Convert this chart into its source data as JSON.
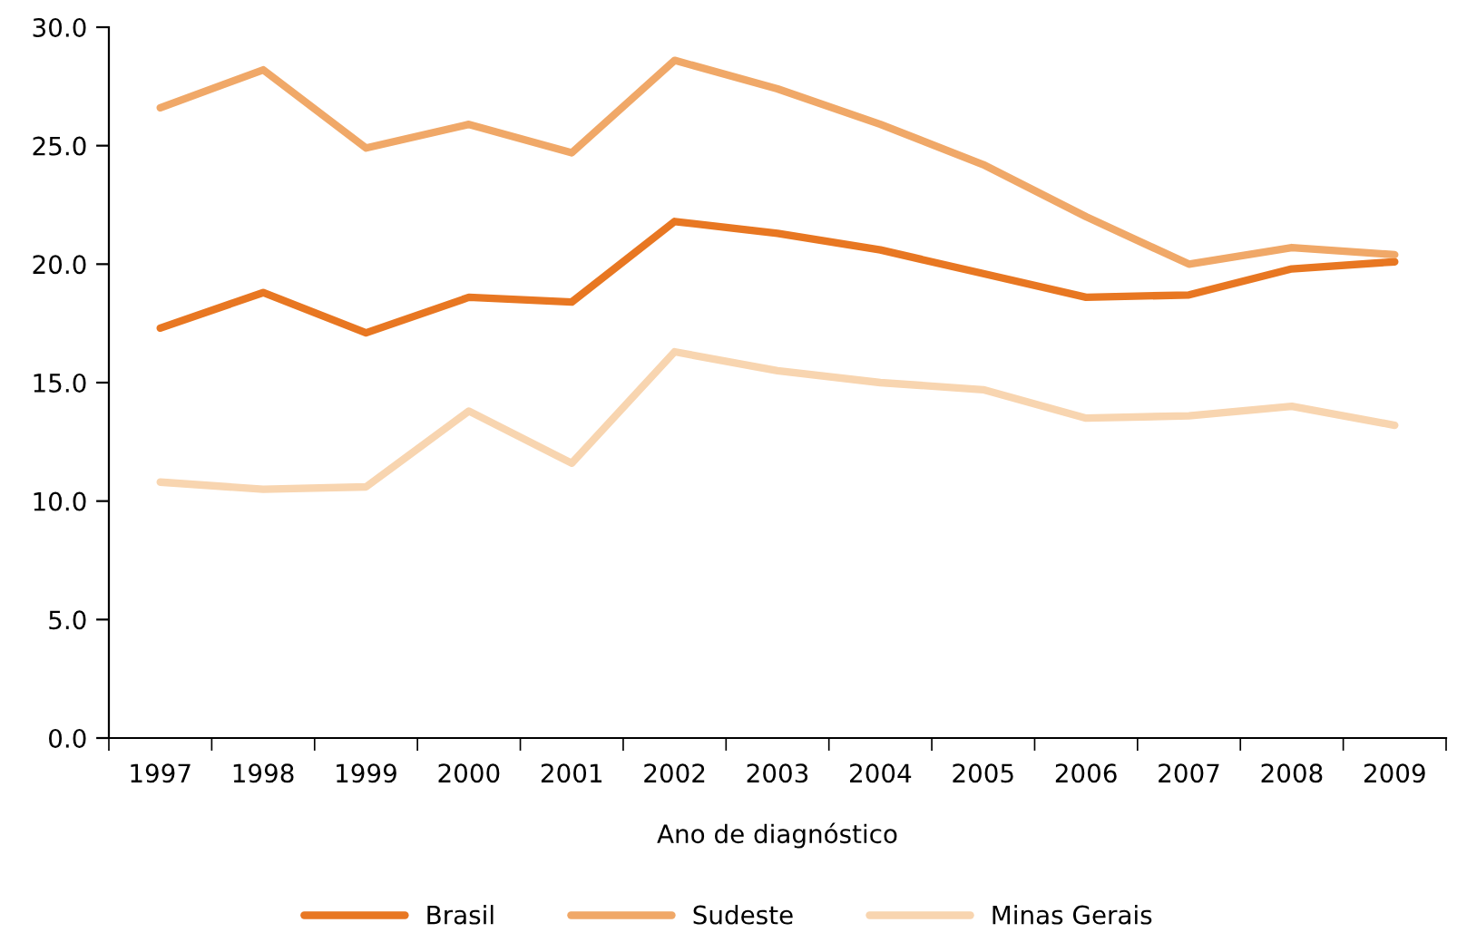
{
  "chart_data": {
    "type": "line",
    "xlabel": "Ano de diagnóstico",
    "categories": [
      "1997",
      "1998",
      "1999",
      "2000",
      "2001",
      "2002",
      "2003",
      "2004",
      "2005",
      "2006",
      "2007",
      "2008",
      "2009"
    ],
    "series": [
      {
        "name": "Brasil",
        "color": "#e87722",
        "values": [
          17.3,
          18.8,
          17.1,
          18.6,
          18.4,
          21.8,
          21.3,
          20.6,
          19.6,
          18.6,
          18.7,
          19.8,
          20.1
        ]
      },
      {
        "name": "Sudeste",
        "color": "#f0a868",
        "values": [
          26.6,
          28.2,
          24.9,
          25.9,
          24.7,
          28.6,
          27.4,
          25.9,
          24.2,
          22.0,
          20.0,
          20.7,
          20.4
        ]
      },
      {
        "name": "Minas Gerais",
        "color": "#f8d5b0",
        "values": [
          10.8,
          10.5,
          10.6,
          13.8,
          11.6,
          16.3,
          15.5,
          15.0,
          14.7,
          13.5,
          13.6,
          14.0,
          13.2
        ]
      }
    ],
    "ylim": [
      0,
      30
    ],
    "yticks": [
      {
        "value": 0,
        "label": "0.0"
      },
      {
        "value": 5,
        "label": "5.0"
      },
      {
        "value": 10,
        "label": "10.0"
      },
      {
        "value": 15,
        "label": "15.0"
      },
      {
        "value": 20,
        "label": "20.0"
      },
      {
        "value": 25,
        "label": "25.0"
      },
      {
        "value": 30,
        "label": "30.0"
      }
    ],
    "grid": false,
    "legend": "bottom",
    "marker": "none",
    "line_style": "solid"
  }
}
